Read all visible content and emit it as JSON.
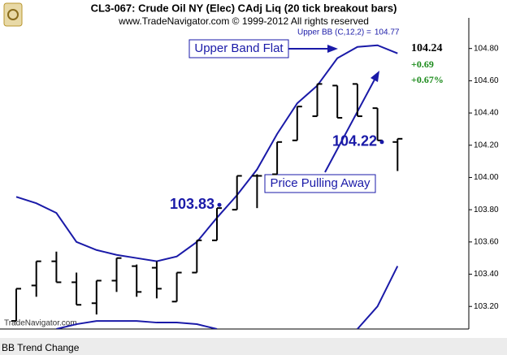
{
  "chart_data": {
    "type": "ohlc",
    "title": "CL3-067:  Crude Oil NY (Elec) CAdj Liq  (20 tick breakout bars)",
    "subtitle": "www.TradeNavigator.com © 1999-2012 All rights reserved",
    "study_label": "Upper BB (C,12,2) =",
    "study_value": 104.77,
    "last_price": 104.24,
    "change": {
      "value": 0.69,
      "label": "+0.69"
    },
    "change_pct": {
      "value": 0.67,
      "label": "+0.67%"
    },
    "watermark": "TradeNavigator.com",
    "footer": "BB Trend Change",
    "bar_color": "#000000",
    "band_color": "#1a1aa8",
    "open": [
      103.11,
      103.33,
      103.48,
      103.35,
      103.22,
      103.36,
      103.45,
      103.44,
      103.23,
      103.41,
      103.61,
      103.8,
      104.01,
      104.02,
      104.23,
      104.38,
      104.57,
      104.58,
      104.43,
      104.22
    ],
    "high": [
      103.31,
      103.48,
      103.54,
      103.41,
      103.36,
      103.5,
      103.46,
      103.48,
      103.41,
      103.61,
      103.81,
      104.01,
      104.02,
      104.22,
      104.44,
      104.58,
      104.57,
      104.58,
      104.43,
      104.24
    ],
    "low": [
      103.11,
      103.26,
      103.35,
      103.21,
      103.15,
      103.29,
      103.26,
      103.25,
      103.23,
      103.41,
      103.61,
      103.8,
      103.81,
      104.02,
      104.23,
      104.38,
      104.37,
      104.38,
      104.23,
      104.04
    ],
    "close": [
      103.31,
      103.48,
      103.35,
      103.21,
      103.36,
      103.5,
      103.29,
      103.31,
      103.41,
      103.61,
      103.81,
      104.01,
      104.01,
      104.22,
      104.44,
      104.58,
      104.37,
      104.38,
      104.23,
      104.24
    ],
    "series": [
      {
        "name": "Upper BB",
        "values": [
          103.88,
          103.84,
          103.78,
          103.6,
          103.55,
          103.52,
          103.5,
          103.48,
          103.51,
          103.6,
          103.75,
          103.89,
          104.05,
          104.27,
          104.46,
          104.57,
          104.74,
          104.81,
          104.82,
          104.77
        ]
      },
      {
        "name": "Lower BB",
        "values": [
          null,
          null,
          103.06,
          103.09,
          103.11,
          103.11,
          103.11,
          103.1,
          103.1,
          103.09,
          103.06,
          null,
          null,
          null,
          null,
          null,
          null,
          103.06,
          103.2,
          103.45
        ]
      }
    ],
    "annotations": [
      "Upper Band Flat",
      "Price Pulling Away"
    ],
    "price_markers": [
      103.83,
      104.22
    ],
    "ylim": [
      103.06,
      104.99
    ],
    "yticks": [
      {
        "value": 103.2,
        "label": "103.20"
      },
      {
        "value": 103.4,
        "label": "103.40"
      },
      {
        "value": 103.6,
        "label": "103.60"
      },
      {
        "value": 103.8,
        "label": "103.80"
      },
      {
        "value": 104.0,
        "label": "104.00"
      },
      {
        "value": 104.2,
        "label": "104.20"
      },
      {
        "value": 104.4,
        "label": "104.40"
      },
      {
        "value": 104.6,
        "label": "104.60"
      },
      {
        "value": 104.8,
        "label": "104.80"
      }
    ]
  }
}
